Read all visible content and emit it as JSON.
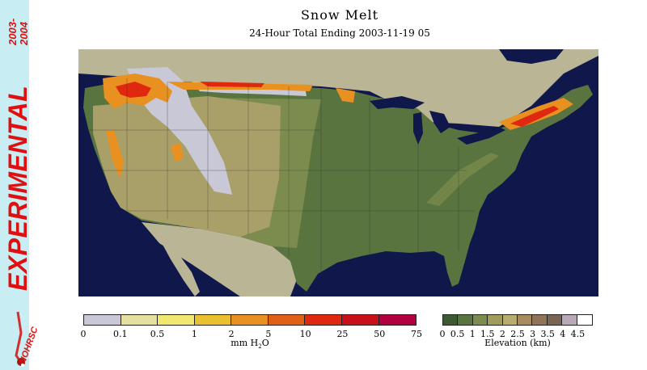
{
  "banner": {
    "years_top": "2003-",
    "years_bottom": "2004",
    "experimental": "EXPERIMENTAL",
    "logo_text": "NOHRSC"
  },
  "title": "Snow Melt",
  "subtitle": "24-Hour Total Ending 2003-11-19 05",
  "melt_scale": {
    "colors": [
      "#c8c8d6",
      "#e6e0a0",
      "#f0e870",
      "#e8c030",
      "#e89020",
      "#e06018",
      "#e02810",
      "#c81018",
      "#b00040"
    ],
    "ticks": [
      "0",
      "0.1",
      "0.5",
      "1",
      "2",
      "5",
      "10",
      "25",
      "50",
      "75"
    ],
    "label_main": "mm H",
    "label_sub": "2",
    "label_end": "O"
  },
  "elev_scale": {
    "colors": [
      "#3c5a32",
      "#5a7440",
      "#7c8c4e",
      "#a09c5c",
      "#b8ac70",
      "#a88c60",
      "#907458",
      "#7a6454",
      "#b8a8b8",
      "#ffffff"
    ],
    "ticks": [
      "0",
      "0.5",
      "1",
      "1.5",
      "2",
      "2.5",
      "3",
      "3.5",
      "4",
      "4.5"
    ],
    "label": "Elevation (km)"
  },
  "map_colors": {
    "ocean": "#10174a",
    "foreign_land": "#b9b595",
    "low_land": "#5a7440",
    "plains": "#7c8c4e",
    "west_high": "#a8a068",
    "snow": "#c8c8d6",
    "melt_orange": "#e89020",
    "melt_red": "#e02810"
  }
}
